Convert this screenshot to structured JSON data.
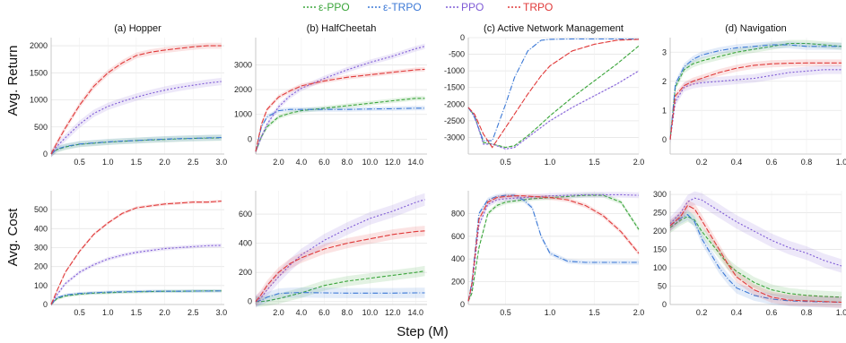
{
  "legend": [
    {
      "key": "eps_ppo",
      "label": "ε-PPO",
      "color": "#3aa53a",
      "dash": "4,2"
    },
    {
      "key": "eps_trpo",
      "label": "ε-TRPO",
      "color": "#3b78d6",
      "dash": "6,2,1,2"
    },
    {
      "key": "ppo",
      "label": "PPO",
      "color": "#7f5bd6",
      "dash": "2,2"
    },
    {
      "key": "trpo",
      "label": "TRPO",
      "color": "#e03a3a",
      "dash": "6,2"
    }
  ],
  "row_labels": [
    "Avg. Return",
    "Avg. Cost"
  ],
  "xlabel": "Step (M)",
  "chart_data": [
    {
      "type": "line",
      "title": "(a) Hopper",
      "ylabel": "Avg. Return",
      "xlim": [
        0,
        3.05
      ],
      "ylim": [
        0,
        2150
      ],
      "xticks": [
        0.5,
        1.0,
        1.5,
        2.0,
        2.5,
        3.0
      ],
      "xtick_labels": [
        "0.5",
        "1.0",
        "1.5",
        "2.0",
        "2.5",
        "3.0"
      ],
      "yticks": [
        0,
        500,
        1000,
        1500,
        2000
      ],
      "ytick_labels": [
        "0",
        "500",
        "1000",
        "1500",
        "2000"
      ],
      "x": [
        0,
        0.1,
        0.25,
        0.5,
        0.75,
        1.0,
        1.25,
        1.5,
        1.75,
        2.0,
        2.25,
        2.5,
        2.75,
        3.0
      ],
      "series": [
        {
          "key": "eps_ppo",
          "name": "ε-PPO",
          "values": [
            0,
            80,
            130,
            180,
            200,
            220,
            235,
            250,
            260,
            270,
            280,
            290,
            295,
            300
          ]
        },
        {
          "key": "eps_trpo",
          "name": "ε-TRPO",
          "values": [
            0,
            90,
            140,
            185,
            205,
            225,
            240,
            250,
            265,
            275,
            285,
            290,
            300,
            305
          ]
        },
        {
          "key": "ppo",
          "name": "PPO",
          "values": [
            0,
            140,
            300,
            550,
            750,
            880,
            970,
            1050,
            1120,
            1180,
            1230,
            1270,
            1310,
            1340
          ]
        },
        {
          "key": "trpo",
          "name": "TRPO",
          "values": [
            0,
            200,
            480,
            900,
            1250,
            1500,
            1680,
            1820,
            1880,
            1920,
            1950,
            1980,
            2000,
            2000
          ]
        }
      ]
    },
    {
      "type": "line",
      "title": "(b) HalfCheetah",
      "ylabel": "",
      "xlim": [
        0,
        15
      ],
      "ylim": [
        -600,
        4100
      ],
      "xticks": [
        2,
        4,
        6,
        8,
        10,
        12,
        14
      ],
      "xtick_labels": [
        "2.0",
        "4.0",
        "6.0",
        "8.0",
        "10.0",
        "12.0",
        "14.0"
      ],
      "yticks": [
        0,
        1000,
        2000,
        3000
      ],
      "ytick_labels": [
        "0",
        "1000",
        "2000",
        "3000"
      ],
      "x": [
        0,
        0.5,
        1,
        2,
        3,
        4,
        6,
        8,
        10,
        12,
        14,
        14.8
      ],
      "series": [
        {
          "key": "eps_ppo",
          "name": "ε-PPO",
          "values": [
            -500,
            100,
            500,
            900,
            1050,
            1150,
            1250,
            1350,
            1450,
            1550,
            1650,
            1650
          ]
        },
        {
          "key": "eps_trpo",
          "name": "ε-TRPO",
          "values": [
            -500,
            500,
            900,
            1150,
            1200,
            1200,
            1200,
            1200,
            1220,
            1230,
            1250,
            1250
          ]
        },
        {
          "key": "ppo",
          "name": "PPO",
          "values": [
            -500,
            100,
            600,
            1300,
            1750,
            2050,
            2450,
            2800,
            3100,
            3350,
            3650,
            3750
          ]
        },
        {
          "key": "trpo",
          "name": "TRPO",
          "values": [
            -500,
            600,
            1200,
            1700,
            1950,
            2150,
            2350,
            2500,
            2600,
            2700,
            2800,
            2820
          ]
        }
      ]
    },
    {
      "type": "line",
      "title": "(c) Active Network Management",
      "ylabel": "",
      "xlim": [
        0.08,
        2.0
      ],
      "ylim": [
        -3500,
        0
      ],
      "xticks": [
        0.5,
        1.0,
        1.5,
        2.0
      ],
      "xtick_labels": [
        "0.5",
        "1.0",
        "1.5",
        "2.0"
      ],
      "yticks": [
        0,
        -500,
        -1000,
        -1500,
        -2000,
        -2500,
        -3000
      ],
      "ytick_labels": [
        "0",
        "-500",
        "-1000",
        "-1500",
        "-2000",
        "-2500",
        "-3000"
      ],
      "x": [
        0.08,
        0.15,
        0.25,
        0.35,
        0.5,
        0.6,
        0.75,
        0.9,
        1.0,
        1.25,
        1.5,
        1.75,
        2.0
      ],
      "series": [
        {
          "key": "eps_ppo",
          "name": "ε-PPO",
          "values": [
            -2100,
            -2350,
            -3150,
            -3200,
            -3300,
            -3250,
            -2950,
            -2600,
            -2350,
            -1800,
            -1300,
            -800,
            -250
          ]
        },
        {
          "key": "eps_trpo",
          "name": "ε-TRPO",
          "values": [
            -2100,
            -2400,
            -3100,
            -3100,
            -2000,
            -1200,
            -400,
            -80,
            -50,
            -40,
            -40,
            -40,
            -40
          ]
        },
        {
          "key": "ppo",
          "name": "PPO",
          "values": [
            -2100,
            -2350,
            -3200,
            -3200,
            -3350,
            -3300,
            -3000,
            -2700,
            -2500,
            -2100,
            -1750,
            -1400,
            -1000
          ]
        },
        {
          "key": "trpo",
          "name": "TRPO",
          "values": [
            -2100,
            -2300,
            -2900,
            -3300,
            -2700,
            -2300,
            -1700,
            -1150,
            -850,
            -400,
            -200,
            -80,
            -50
          ]
        }
      ]
    },
    {
      "type": "line",
      "title": "(d) Navigation",
      "ylabel": "",
      "xlim": [
        0.02,
        1.0
      ],
      "ylim": [
        -0.5,
        3.5
      ],
      "xticks": [
        0.2,
        0.4,
        0.6,
        0.8,
        1.0
      ],
      "xtick_labels": [
        "0.2",
        "0.4",
        "0.6",
        "0.8",
        "1.0"
      ],
      "yticks": [
        0,
        1,
        2,
        3
      ],
      "ytick_labels": [
        "0",
        "1",
        "2",
        "3"
      ],
      "x": [
        0.02,
        0.05,
        0.1,
        0.15,
        0.2,
        0.3,
        0.4,
        0.5,
        0.6,
        0.7,
        0.8,
        0.9,
        1.0
      ],
      "series": [
        {
          "key": "eps_ppo",
          "name": "ε-PPO",
          "values": [
            0,
            1.8,
            2.4,
            2.6,
            2.7,
            2.85,
            3.0,
            3.1,
            3.2,
            3.3,
            3.3,
            3.25,
            3.2
          ]
        },
        {
          "key": "eps_trpo",
          "name": "ε-TRPO",
          "values": [
            0,
            1.9,
            2.5,
            2.75,
            2.9,
            3.05,
            3.15,
            3.2,
            3.25,
            3.25,
            3.2,
            3.2,
            3.2
          ]
        },
        {
          "key": "ppo",
          "name": "PPO",
          "values": [
            0,
            1.3,
            1.8,
            1.9,
            1.95,
            2.0,
            2.05,
            2.1,
            2.2,
            2.3,
            2.35,
            2.4,
            2.4
          ]
        },
        {
          "key": "trpo",
          "name": "TRPO",
          "values": [
            0,
            1.5,
            1.85,
            2.0,
            2.1,
            2.3,
            2.45,
            2.55,
            2.6,
            2.62,
            2.63,
            2.63,
            2.63
          ]
        }
      ]
    },
    {
      "type": "line",
      "title": "",
      "ylabel": "Avg. Cost",
      "xlim": [
        0,
        3.05
      ],
      "ylim": [
        0,
        600
      ],
      "xticks": [
        0.5,
        1.0,
        1.5,
        2.0,
        2.5,
        3.0
      ],
      "xtick_labels": [
        "0.5",
        "1.0",
        "1.5",
        "2.0",
        "2.5",
        "3.0"
      ],
      "yticks": [
        0,
        100,
        200,
        300,
        400,
        500
      ],
      "ytick_labels": [
        "0",
        "100",
        "200",
        "300",
        "400",
        "500"
      ],
      "x": [
        0,
        0.1,
        0.25,
        0.5,
        0.75,
        1.0,
        1.25,
        1.5,
        1.75,
        2.0,
        2.25,
        2.5,
        2.75,
        3.0
      ],
      "series": [
        {
          "key": "eps_ppo",
          "name": "ε-PPO",
          "values": [
            0,
            30,
            45,
            55,
            60,
            62,
            65,
            67,
            68,
            70,
            70,
            71,
            72,
            72
          ]
        },
        {
          "key": "eps_trpo",
          "name": "ε-TRPO",
          "values": [
            0,
            35,
            50,
            58,
            62,
            65,
            67,
            68,
            70,
            70,
            70,
            71,
            71,
            72
          ]
        },
        {
          "key": "ppo",
          "name": "PPO",
          "values": [
            0,
            50,
            110,
            170,
            210,
            240,
            260,
            275,
            285,
            295,
            300,
            305,
            310,
            312
          ]
        },
        {
          "key": "trpo",
          "name": "TRPO",
          "values": [
            0,
            70,
            170,
            280,
            370,
            430,
            480,
            510,
            520,
            530,
            535,
            540,
            540,
            545
          ]
        }
      ]
    },
    {
      "type": "line",
      "title": "",
      "ylabel": "",
      "xlim": [
        0,
        15
      ],
      "ylim": [
        -20,
        760
      ],
      "xticks": [
        2,
        4,
        6,
        8,
        10,
        12,
        14
      ],
      "xtick_labels": [
        "2.0",
        "4.0",
        "6.0",
        "8.0",
        "10.0",
        "12.0",
        "14.0"
      ],
      "yticks": [
        0,
        200,
        400,
        600
      ],
      "ytick_labels": [
        "0",
        "200",
        "400",
        "600"
      ],
      "x": [
        0,
        0.5,
        1,
        2,
        3,
        4,
        6,
        8,
        10,
        12,
        14,
        14.8
      ],
      "series": [
        {
          "key": "eps_ppo",
          "name": "ε-PPO",
          "values": [
            0,
            0,
            5,
            20,
            40,
            60,
            110,
            140,
            160,
            180,
            200,
            210
          ]
        },
        {
          "key": "eps_trpo",
          "name": "ε-TRPO",
          "values": [
            0,
            10,
            30,
            55,
            60,
            62,
            60,
            58,
            58,
            58,
            60,
            60
          ]
        },
        {
          "key": "ppo",
          "name": "PPO",
          "values": [
            0,
            30,
            80,
            170,
            250,
            320,
            420,
            500,
            570,
            620,
            680,
            700
          ]
        },
        {
          "key": "trpo",
          "name": "TRPO",
          "values": [
            0,
            50,
            110,
            200,
            260,
            300,
            360,
            400,
            430,
            460,
            480,
            485
          ]
        }
      ]
    },
    {
      "type": "line",
      "title": "",
      "ylabel": "",
      "xlim": [
        0.08,
        2.0
      ],
      "ylim": [
        0,
        1000
      ],
      "xticks": [
        0.5,
        1.0,
        1.5,
        2.0
      ],
      "xtick_labels": [
        "0.5",
        "1.0",
        "1.5",
        "2.0"
      ],
      "yticks": [
        0,
        200,
        400,
        600,
        800
      ],
      "ytick_labels": [
        "0",
        "200",
        "400",
        "600",
        "800"
      ],
      "x": [
        0.08,
        0.12,
        0.2,
        0.3,
        0.4,
        0.5,
        0.6,
        0.7,
        0.8,
        0.9,
        1.0,
        1.2,
        1.4,
        1.6,
        1.8,
        2.0
      ],
      "series": [
        {
          "key": "eps_ppo",
          "name": "ε-PPO",
          "values": [
            30,
            100,
            500,
            800,
            870,
            900,
            910,
            920,
            930,
            935,
            940,
            950,
            960,
            960,
            900,
            660
          ]
        },
        {
          "key": "eps_trpo",
          "name": "ε-TRPO",
          "values": [
            30,
            200,
            800,
            920,
            950,
            960,
            960,
            920,
            850,
            600,
            450,
            380,
            370,
            370,
            370,
            370
          ]
        },
        {
          "key": "ppo",
          "name": "PPO",
          "values": [
            30,
            150,
            700,
            880,
            920,
            930,
            935,
            940,
            945,
            950,
            955,
            960,
            965,
            965,
            965,
            960
          ]
        },
        {
          "key": "trpo",
          "name": "TRPO",
          "values": [
            30,
            180,
            750,
            900,
            940,
            950,
            955,
            955,
            950,
            945,
            940,
            920,
            870,
            780,
            640,
            450
          ]
        }
      ]
    },
    {
      "type": "line",
      "title": "",
      "ylabel": "",
      "xlim": [
        0.02,
        1.0
      ],
      "ylim": [
        0,
        310
      ],
      "xticks": [
        0.2,
        0.4,
        0.6,
        0.8,
        1.0
      ],
      "xtick_labels": [
        "0.2",
        "0.4",
        "0.6",
        "0.8",
        "1.0"
      ],
      "yticks": [
        0,
        50,
        100,
        150,
        200,
        250,
        300
      ],
      "ytick_labels": [
        "0",
        "50",
        "100",
        "150",
        "200",
        "250",
        "300"
      ],
      "x": [
        0.02,
        0.08,
        0.12,
        0.16,
        0.2,
        0.25,
        0.3,
        0.35,
        0.4,
        0.5,
        0.6,
        0.7,
        0.8,
        0.9,
        1.0
      ],
      "series": [
        {
          "key": "eps_ppo",
          "name": "ε-PPO",
          "values": [
            210,
            230,
            240,
            230,
            200,
            170,
            140,
            110,
            90,
            60,
            40,
            30,
            25,
            22,
            20
          ]
        },
        {
          "key": "eps_trpo",
          "name": "ε-TRPO",
          "values": [
            215,
            235,
            245,
            225,
            180,
            140,
            100,
            70,
            45,
            25,
            15,
            10,
            8,
            7,
            6
          ]
        },
        {
          "key": "ppo",
          "name": "PPO",
          "values": [
            220,
            250,
            280,
            290,
            285,
            270,
            255,
            240,
            225,
            200,
            175,
            155,
            140,
            120,
            105
          ]
        },
        {
          "key": "trpo",
          "name": "TRPO",
          "values": [
            215,
            240,
            270,
            260,
            230,
            190,
            150,
            110,
            75,
            40,
            20,
            12,
            10,
            8,
            6
          ]
        }
      ]
    }
  ]
}
